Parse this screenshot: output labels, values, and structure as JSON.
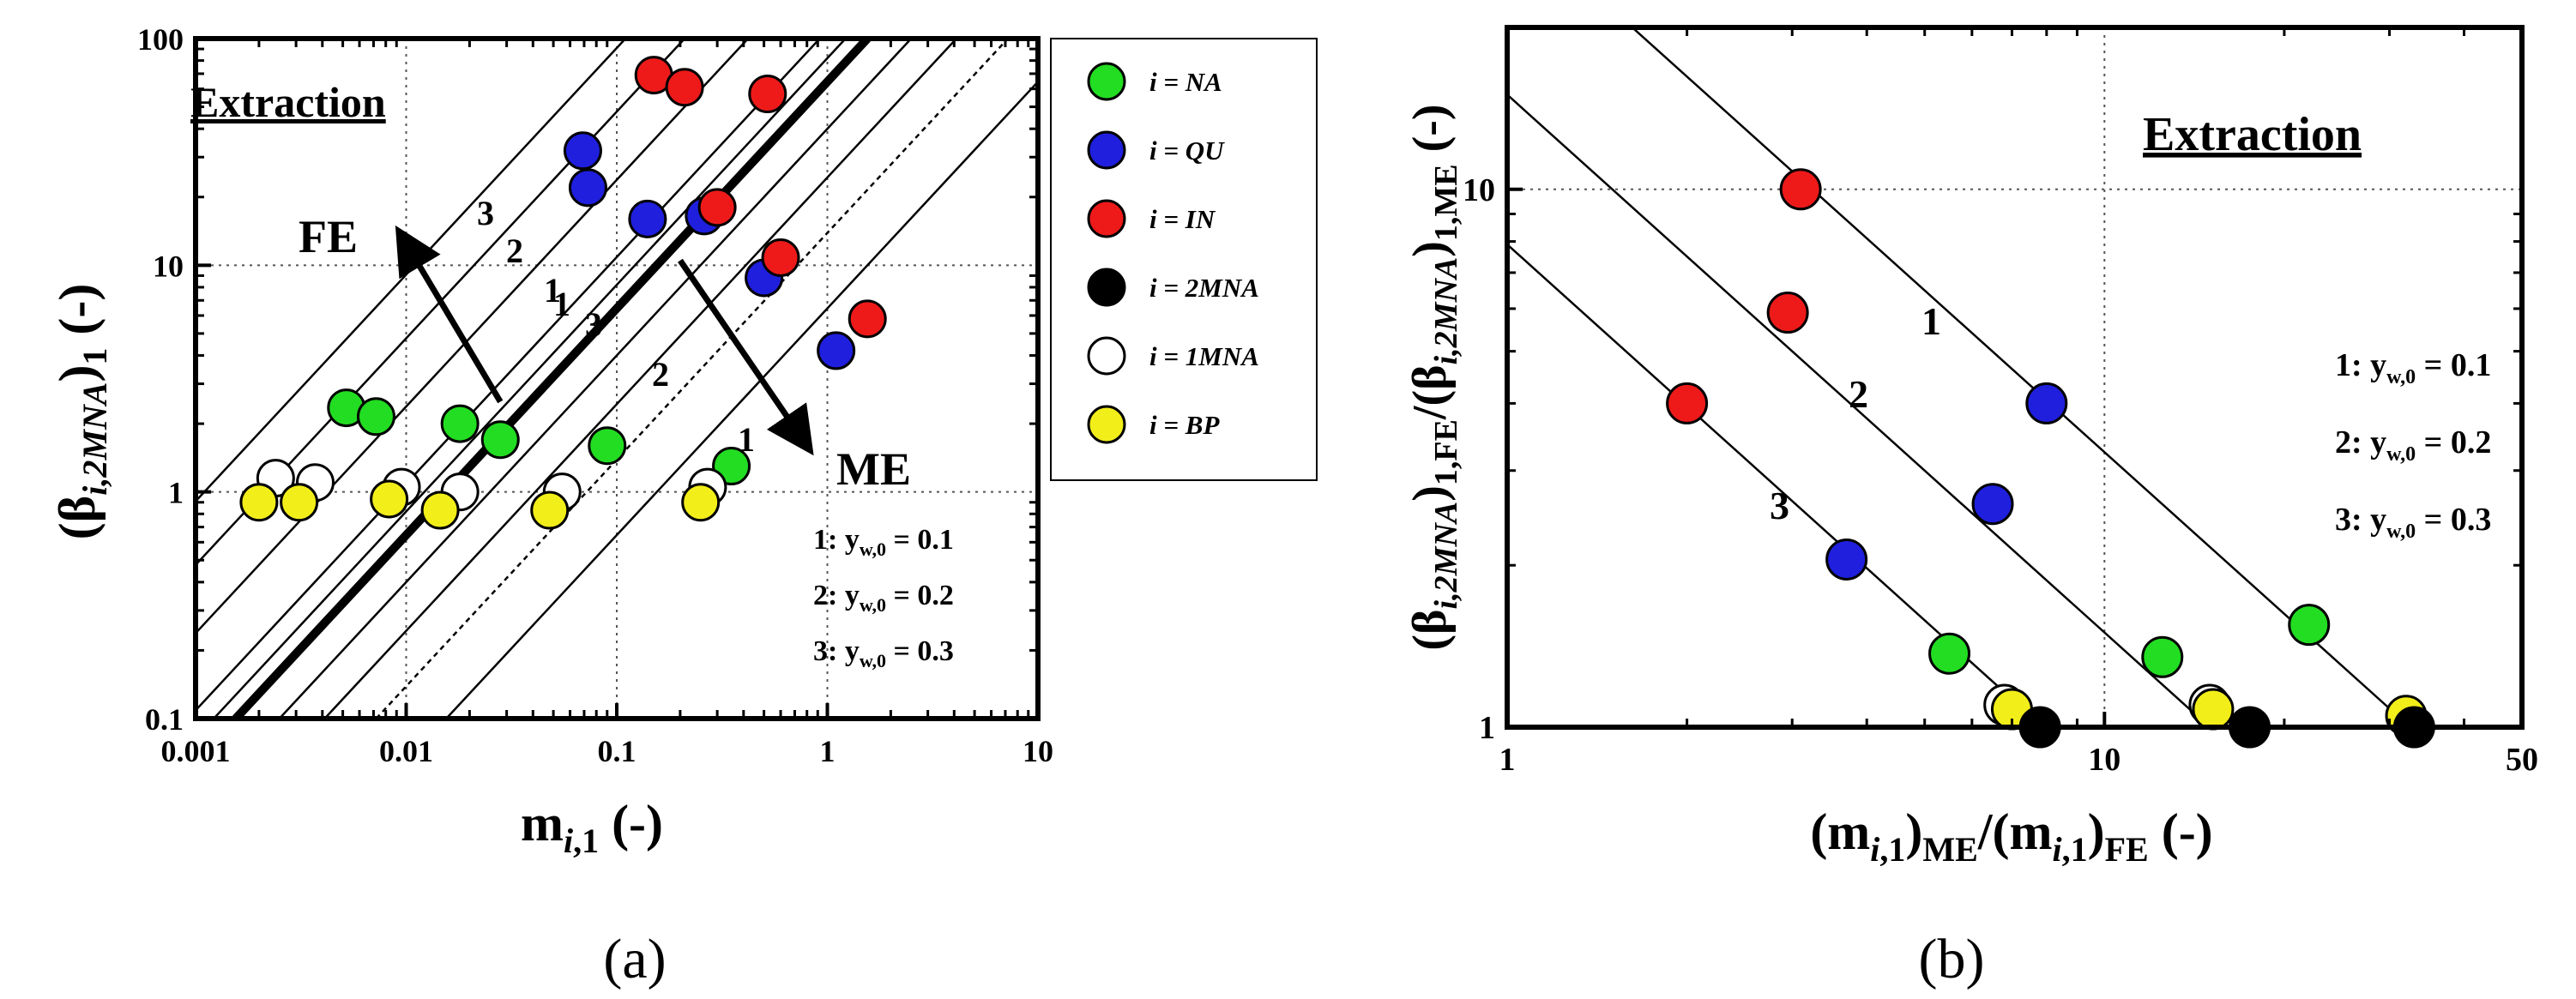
{
  "chart_data": [
    {
      "panel": "(a)",
      "type": "scatter",
      "x_scale": "log",
      "y_scale": "log",
      "xlim": [
        0.001,
        10
      ],
      "ylim": [
        0.1,
        100
      ],
      "xlabel": {
        "prefix": "m",
        "sub_italic": "i",
        "sub": ",1",
        "suffix": " (-)"
      },
      "ylabel": {
        "prefix": "(β",
        "sub_italic": "i,2MNA",
        "mid": ")",
        "sub": "1",
        "suffix": " (-)"
      },
      "x_ticks": [
        {
          "value": 0.001,
          "label": "0.001"
        },
        {
          "value": 0.01,
          "label": "0.01"
        },
        {
          "value": 0.1,
          "label": "0.1"
        },
        {
          "value": 1,
          "label": "1"
        },
        {
          "value": 10,
          "label": "10"
        }
      ],
      "y_ticks": [
        {
          "value": 0.1,
          "label": "0.1"
        },
        {
          "value": 1,
          "label": "1"
        },
        {
          "value": 10,
          "label": "10"
        },
        {
          "value": 100,
          "label": "100"
        }
      ],
      "grid": "dotted at decades",
      "title_text": "Extraction",
      "legend_items": [
        {
          "text": "i = NA",
          "color": "#22dd22"
        },
        {
          "text": "i = QU",
          "color": "#1f1fdd"
        },
        {
          "text": "i = IN",
          "color": "#ee1a1a"
        },
        {
          "text": "i = 2MNA",
          "color": "#000000"
        },
        {
          "text": "i = 1MNA",
          "color": "#ffffff"
        },
        {
          "text": "i = BP",
          "color": "#f2ee1a"
        }
      ],
      "conditions": [
        "1: y",
        "w,0",
        " = 0.1",
        "2: y",
        "w,0",
        " = 0.2",
        "3: y",
        "w,0",
        " = 0.3"
      ],
      "annotations": {
        "fe_label": "FE",
        "me_label": "ME",
        "fe_line_labels": [
          "3",
          "2",
          "1"
        ],
        "me_line_labels": [
          "1",
          "3",
          "2",
          "1"
        ],
        "fe_arrow_from": {
          "x": 0.028,
          "y": 2.5
        },
        "fe_arrow_to": {
          "x": 0.0095,
          "y": 13.5
        },
        "me_arrow_from": {
          "x": 0.2,
          "y": 10.5
        },
        "me_arrow_to": {
          "x": 0.8,
          "y": 1.6
        }
      },
      "lines": [
        {
          "style": "thick",
          "x1": 0.00155,
          "y1": 0.1,
          "x2": 1.55,
          "y2": 100
        },
        {
          "style": "thin",
          "x1": 0.00092,
          "y1": 0.1,
          "x2": 0.92,
          "y2": 100
        },
        {
          "style": "thin",
          "x1": 0.00122,
          "y1": 0.1,
          "x2": 1.22,
          "y2": 100
        },
        {
          "style": "thin",
          "x1": 0.00042,
          "y1": 0.1,
          "x2": 0.42,
          "y2": 100
        },
        {
          "style": "thin",
          "x1": 0.00021,
          "y1": 0.1,
          "x2": 0.21,
          "y2": 100
        },
        {
          "style": "thin",
          "x1": 0.00011,
          "y1": 0.1,
          "x2": 0.11,
          "y2": 100
        },
        {
          "style": "thin",
          "x1": 0.0025,
          "y1": 0.1,
          "x2": 2.5,
          "y2": 100
        },
        {
          "style": "thin",
          "x1": 0.0041,
          "y1": 0.1,
          "x2": 4.1,
          "y2": 100
        },
        {
          "style": "dotted",
          "x1": 0.0072,
          "y1": 0.1,
          "x2": 7.2,
          "y2": 100
        },
        {
          "style": "thin",
          "x1": 0.0155,
          "y1": 0.1,
          "x2": 15.5,
          "y2": 100
        }
      ],
      "series": [
        {
          "name": "NA",
          "color": "#22dd22",
          "points": [
            [
              0.0052,
              2.35
            ],
            [
              0.0072,
              2.15
            ],
            [
              0.018,
              2.0
            ],
            [
              0.028,
              1.7
            ],
            [
              0.09,
              1.6
            ],
            [
              0.35,
              1.3
            ]
          ]
        },
        {
          "name": "QU",
          "color": "#1f1fdd",
          "points": [
            [
              0.069,
              32
            ],
            [
              0.073,
              22
            ],
            [
              0.14,
              16
            ],
            [
              0.26,
              16.5
            ],
            [
              0.5,
              8.8
            ],
            [
              1.1,
              4.2
            ]
          ]
        },
        {
          "name": "IN",
          "color": "#ee1a1a",
          "points": [
            [
              0.15,
              69
            ],
            [
              0.21,
              61
            ],
            [
              0.52,
              57
            ],
            [
              0.3,
              18
            ],
            [
              0.6,
              10.8
            ],
            [
              1.55,
              5.8
            ]
          ]
        },
        {
          "name": "1MNA",
          "color": "#ffffff",
          "points": [
            [
              0.0024,
              1.15
            ],
            [
              0.0037,
              1.1
            ],
            [
              0.0095,
              1.05
            ],
            [
              0.018,
              1.0
            ],
            [
              0.055,
              1.0
            ],
            [
              0.27,
              1.05
            ]
          ]
        },
        {
          "name": "BP",
          "color": "#f2ee1a",
          "points": [
            [
              0.002,
              0.9
            ],
            [
              0.0031,
              0.9
            ],
            [
              0.0083,
              0.93
            ],
            [
              0.0145,
              0.83
            ],
            [
              0.048,
              0.83
            ],
            [
              0.25,
              0.9
            ]
          ]
        }
      ]
    },
    {
      "panel": "(b)",
      "type": "scatter",
      "x_scale": "log",
      "y_scale": "log",
      "xlim": [
        1,
        50
      ],
      "ylim": [
        1,
        20
      ],
      "xlabel": {
        "prefix": "(m",
        "sub_italic": "i",
        "sub": ",1",
        "mid": ")",
        "sub2": "ME",
        "mid2": "/(m",
        "sub3_italic": "i",
        "sub3": ",1",
        "mid3": ")",
        "sub4": "FE",
        "suffix": " (-)"
      },
      "ylabel": {
        "prefix": "(β",
        "sub_italic": "i,2MNA",
        "mid": ")",
        "sub": "1,FE",
        "mid2": "/(β",
        "sub2_italic": "i,2MNA",
        "mid3": ")",
        "sub3": "1,ME",
        "suffix": " (-)"
      },
      "x_ticks": [
        {
          "value": 1,
          "label": "1"
        },
        {
          "value": 10,
          "label": "10"
        },
        {
          "value": 50,
          "label": "50"
        }
      ],
      "y_ticks": [
        {
          "value": 1,
          "label": "1"
        },
        {
          "value": 10,
          "label": "10"
        }
      ],
      "grid": "dotted at x=10, y=10",
      "title_text": "Extraction",
      "conditions": [
        "1: y",
        "w,0",
        " = 0.1",
        "2: y",
        "w,0",
        " = 0.2",
        "3: y",
        "w,0",
        " = 0.3"
      ],
      "line_labels": [
        "1",
        "2",
        "3"
      ],
      "lines": [
        {
          "label": "1",
          "x1": 1.62,
          "y1": 20,
          "x2": 32.5,
          "y2": 1
        },
        {
          "label": "2",
          "x1": 1.0,
          "y1": 15.0,
          "x2": 15.0,
          "y2": 1
        },
        {
          "label": "3",
          "x1": 1.0,
          "y1": 7.9,
          "x2": 7.9,
          "y2": 1
        }
      ],
      "series": [
        {
          "name": "IN",
          "color": "#ee1a1a",
          "points": [
            [
              3.1,
              10.0
            ],
            [
              2.95,
              5.9
            ],
            [
              2.0,
              4.0
            ]
          ]
        },
        {
          "name": "QU",
          "color": "#1f1fdd",
          "points": [
            [
              8.0,
              4.0
            ],
            [
              6.5,
              2.6
            ],
            [
              3.7,
              2.05
            ]
          ]
        },
        {
          "name": "NA",
          "color": "#22dd22",
          "points": [
            [
              22.0,
              1.55
            ],
            [
              12.5,
              1.35
            ],
            [
              5.5,
              1.37
            ]
          ]
        },
        {
          "name": "1MNA",
          "color": "#ffffff",
          "points": [
            [
              6.8,
              1.1
            ],
            [
              15.0,
              1.1
            ]
          ]
        },
        {
          "name": "BP",
          "color": "#f2ee1a",
          "points": [
            [
              7.0,
              1.08
            ],
            [
              15.2,
              1.08
            ],
            [
              32.0,
              1.05
            ]
          ]
        },
        {
          "name": "2MNA",
          "color": "#000000",
          "points": [
            [
              7.8,
              1.0
            ],
            [
              17.5,
              1.0
            ],
            [
              33.0,
              1.0
            ]
          ]
        }
      ]
    }
  ]
}
